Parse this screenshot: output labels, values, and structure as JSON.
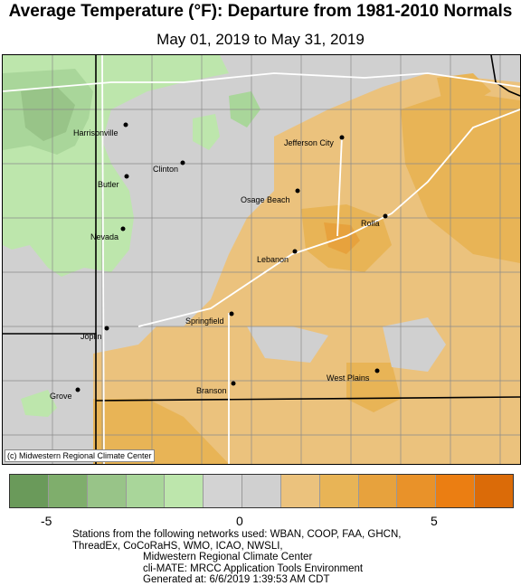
{
  "title": "Average Temperature (°F): Departure from 1981-2010 Normals",
  "subtitle": "May 01, 2019 to May 31, 2019",
  "copyright": "(c) Midwestern Regional Climate Center",
  "stations": [
    {
      "name": "Harrisonville"
    },
    {
      "name": "Clinton"
    },
    {
      "name": "Butler"
    },
    {
      "name": "Nevada"
    },
    {
      "name": "Jefferson City"
    },
    {
      "name": "Osage Beach"
    },
    {
      "name": "Rolla"
    },
    {
      "name": "Lebanon"
    },
    {
      "name": "Springfield"
    },
    {
      "name": "Joplin"
    },
    {
      "name": "Grove"
    },
    {
      "name": "Branson"
    },
    {
      "name": "West Plains"
    }
  ],
  "legend": {
    "colors": [
      "#6a9a5a",
      "#7fae6c",
      "#98c488",
      "#a9d69a",
      "#bde6ac",
      "#d3d3d3",
      "#d0d0d0",
      "#ebc27d",
      "#e8b456",
      "#e7a23d",
      "#e99229",
      "#eb7e12",
      "#db6b08"
    ],
    "tick_labels": [
      "-5",
      "0",
      "5"
    ]
  },
  "footer": {
    "line1": "Stations from the following networks used: WBAN, COOP, FAA, GHCN,",
    "line2": "ThreadEx, CoCoRaHS, WMO, ICAO, NWSLI,",
    "line3": "Midwestern Regional Climate Center",
    "line4": "cli-MATE: MRCC Application Tools Environment",
    "line5": "Generated at: 6/6/2019 1:39:53 AM CDT"
  }
}
